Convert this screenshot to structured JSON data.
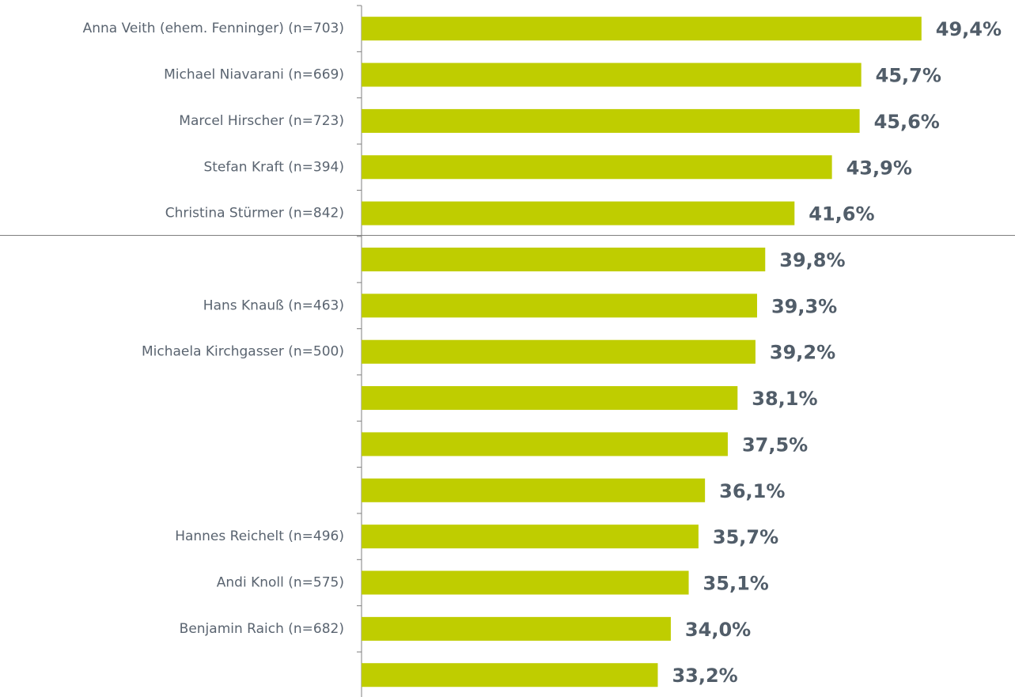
{
  "chart_data": {
    "type": "barh",
    "categories": [
      "Anna Veith (ehem. Fenninger) (n=703)",
      "Michael Niavarani (n=669)",
      "Marcel Hirscher (n=723)",
      "Stefan Kraft (n=394)",
      "Christina Stürmer (n=842)",
      null,
      "Hans Knauß (n=463)",
      "Michaela Kirchgasser (n=500)",
      null,
      null,
      null,
      "Hannes Reichelt (n=496)",
      "Andi Knoll (n=575)",
      "Benjamin Raich (n=682)",
      null
    ],
    "values": [
      49.4,
      45.7,
      45.6,
      43.9,
      41.6,
      39.8,
      39.3,
      39.2,
      38.1,
      37.5,
      36.1,
      35.7,
      35.1,
      34.0,
      33.2
    ],
    "value_labels": [
      "49,4%",
      "45,7%",
      "45,6%",
      "43,9%",
      "41,6%",
      "39,8%",
      "39,3%",
      "39,2%",
      "38,1%",
      "37,5%",
      "36,1%",
      "35,7%",
      "35,1%",
      "34,0%",
      "33,2%"
    ],
    "color": "#bfcd00",
    "xlim": [
      15,
      55
    ]
  }
}
